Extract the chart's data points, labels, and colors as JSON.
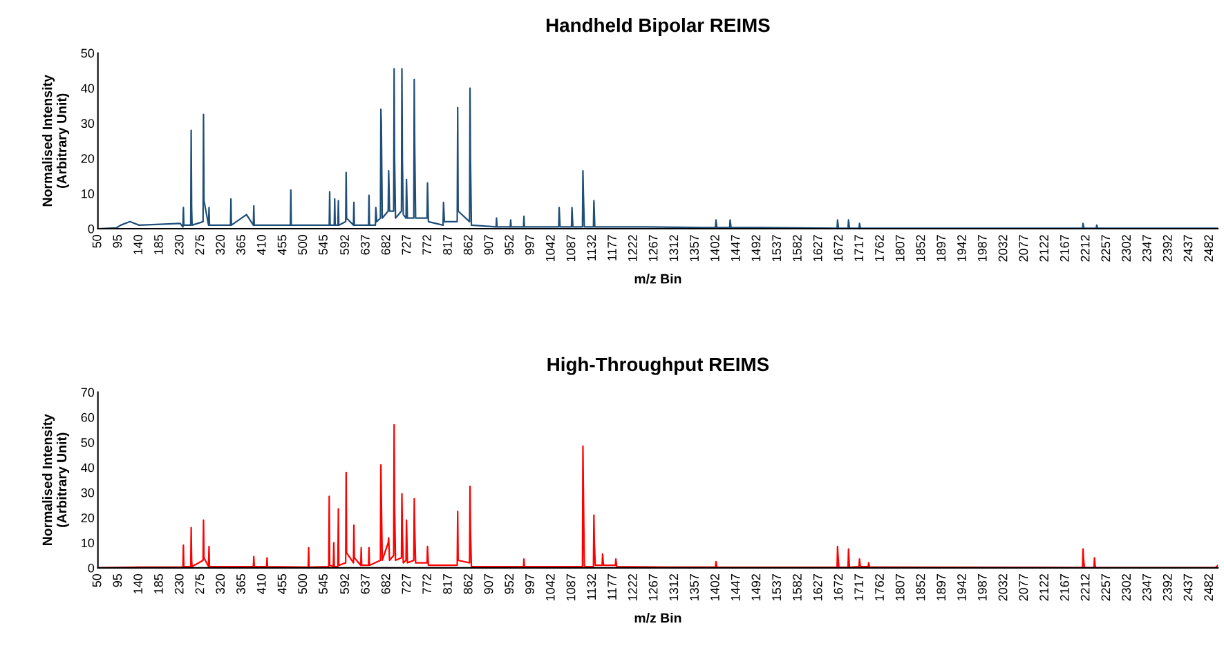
{
  "chart_data": [
    {
      "type": "line",
      "title": "Handheld Bipolar REIMS",
      "xlabel": "m/z Bin",
      "ylabel": "Normalised Intensity\n(Arbitrary Unit)",
      "xlim": [
        50,
        2500
      ],
      "ylim": [
        0,
        50
      ],
      "yticks": [
        0,
        10,
        20,
        30,
        40,
        50
      ],
      "xticks": [
        50,
        95,
        140,
        185,
        230,
        275,
        320,
        365,
        410,
        455,
        500,
        545,
        592,
        637,
        682,
        727,
        772,
        817,
        862,
        907,
        952,
        997,
        1042,
        1087,
        1132,
        1177,
        1222,
        1267,
        1312,
        1357,
        1402,
        1447,
        1492,
        1537,
        1582,
        1627,
        1672,
        1717,
        1762,
        1807,
        1852,
        1897,
        1942,
        1987,
        2032,
        2077,
        2122,
        2167,
        2212,
        2257,
        2302,
        2347,
        2392,
        2437,
        2482
      ],
      "grid": false,
      "marker": "none",
      "line_style": "solid",
      "series": [
        {
          "color": "#1f4e79",
          "x": [
            50,
            90,
            100,
            120,
            140,
            230,
            236,
            237,
            238,
            253,
            254,
            255,
            256,
            280,
            281,
            282,
            292,
            293,
            294,
            340,
            341,
            342,
            375,
            390,
            391,
            392,
            471,
            472,
            473,
            556,
            557,
            558,
            567,
            568,
            569,
            575,
            576,
            577,
            592,
            593,
            594,
            609,
            610,
            611,
            642,
            643,
            644,
            657,
            658,
            660,
            668,
            669,
            670,
            672,
            685,
            686,
            688,
            697,
            698,
            699,
            701,
            714,
            715,
            716,
            718,
            724,
            725,
            727,
            741,
            742,
            743,
            745,
            770,
            771,
            773,
            805,
            806,
            808,
            836,
            837,
            838,
            863,
            864,
            865,
            867,
            921,
            922,
            923,
            952,
            953,
            954,
            981,
            982,
            983,
            1058,
            1059,
            1061,
            1086,
            1087,
            1089,
            1110,
            1111,
            1112,
            1114,
            1134,
            1135,
            1137,
            1250,
            1401,
            1402,
            1404,
            1432,
            1433,
            1435,
            1500,
            1667,
            1668,
            1670,
            1691,
            1692,
            1694,
            1715,
            1716,
            1718,
            2204,
            2205,
            2207,
            2234,
            2235,
            2237,
            2500
          ],
          "values": [
            0,
            0.2,
            1,
            2,
            1,
            1.5,
            0.5,
            6,
            1,
            1,
            28,
            6,
            1,
            2,
            32.5,
            8,
            1,
            6,
            1,
            1,
            8.5,
            1,
            4,
            1,
            6.5,
            1,
            1,
            11,
            1,
            1,
            10.5,
            1,
            1,
            8.5,
            1,
            1,
            8,
            1,
            2,
            16,
            3,
            1,
            7.5,
            1,
            1,
            9.5,
            1,
            1,
            6,
            2,
            3,
            34,
            30,
            3,
            5,
            16.5,
            5,
            5,
            45.5,
            20,
            3,
            5,
            45.5,
            20,
            4,
            3,
            14,
            3,
            3,
            42.5,
            24,
            3,
            3,
            13,
            2,
            1,
            7.5,
            2,
            2,
            34.5,
            5,
            2,
            40,
            20,
            1,
            0.5,
            3,
            0.5,
            0.5,
            2.5,
            0.5,
            0.5,
            3.5,
            0.5,
            0.5,
            6,
            0.5,
            0.5,
            6,
            0.5,
            0.5,
            16.5,
            10,
            0.5,
            0.5,
            8,
            0.5,
            0.5,
            0.3,
            2.5,
            0.3,
            0.3,
            2.5,
            0.3,
            0.3,
            0.1,
            2.5,
            0.1,
            0.1,
            2.5,
            0.1,
            0.1,
            1.5,
            0.1,
            0.1,
            1.5,
            0.1,
            0.1,
            1,
            0.1,
            0.1
          ]
        }
      ]
    },
    {
      "type": "line",
      "title": "High-Throughput REIMS",
      "xlabel": "m/z Bin",
      "ylabel": "Normalised Intensity\n(Arbitrary Unit)",
      "xlim": [
        50,
        2500
      ],
      "ylim": [
        0,
        70
      ],
      "yticks": [
        0,
        10,
        20,
        30,
        40,
        50,
        60,
        70
      ],
      "xticks": [
        50,
        95,
        140,
        185,
        230,
        275,
        320,
        365,
        410,
        455,
        500,
        545,
        592,
        637,
        682,
        727,
        772,
        817,
        862,
        907,
        952,
        997,
        1042,
        1087,
        1132,
        1177,
        1222,
        1267,
        1312,
        1357,
        1402,
        1447,
        1492,
        1537,
        1582,
        1627,
        1672,
        1717,
        1762,
        1807,
        1852,
        1897,
        1942,
        1987,
        2032,
        2077,
        2122,
        2167,
        2212,
        2257,
        2302,
        2347,
        2392,
        2437,
        2482
      ],
      "grid": false,
      "marker": "none",
      "line_style": "solid",
      "series": [
        {
          "color": "#ff0000",
          "x": [
            50,
            140,
            236,
            237,
            238,
            253,
            254,
            255,
            256,
            280,
            281,
            282,
            292,
            293,
            294,
            390,
            391,
            392,
            419,
            420,
            421,
            510,
            511,
            512,
            555,
            556,
            557,
            565,
            566,
            567,
            575,
            576,
            577,
            592,
            593,
            594,
            609,
            610,
            611,
            625,
            626,
            627,
            642,
            643,
            644,
            668,
            669,
            670,
            672,
            685,
            686,
            688,
            697,
            698,
            699,
            701,
            714,
            715,
            716,
            718,
            724,
            725,
            727,
            741,
            742,
            743,
            745,
            770,
            771,
            773,
            836,
            837,
            838,
            863,
            864,
            865,
            867,
            981,
            982,
            983,
            1110,
            1111,
            1112,
            1114,
            1134,
            1135,
            1136,
            1138,
            1153,
            1154,
            1156,
            1182,
            1183,
            1185,
            1300,
            1401,
            1402,
            1404,
            1500,
            1667,
            1668,
            1669,
            1671,
            1691,
            1692,
            1694,
            1715,
            1716,
            1718,
            1735,
            1736,
            1738,
            2204,
            2205,
            2206,
            2208,
            2229,
            2230,
            2232,
            2495,
            2500
          ],
          "values": [
            0,
            0.3,
            0.3,
            9,
            0.5,
            0.5,
            16,
            3,
            0.5,
            3,
            19,
            4,
            0.5,
            8.5,
            0.5,
            0.5,
            4.5,
            0.5,
            0.5,
            4,
            0.5,
            0.3,
            8,
            0.3,
            0.5,
            28.5,
            1,
            0.5,
            10,
            0.5,
            0.5,
            23.5,
            1,
            2,
            38,
            6,
            2,
            17,
            4,
            1,
            8,
            1,
            1,
            8,
            1,
            3,
            41,
            28,
            3,
            10,
            12,
            3,
            5,
            57,
            25,
            3,
            4,
            29.5,
            15,
            2,
            3,
            19,
            2,
            3,
            27.5,
            16,
            2,
            2,
            8.5,
            1,
            1,
            22.5,
            3,
            2,
            32.5,
            15,
            0.5,
            0.5,
            3.5,
            0.5,
            0.5,
            48.5,
            31,
            0.5,
            0.5,
            21,
            10,
            1,
            1,
            5.5,
            1,
            1,
            3.5,
            0.5,
            0.3,
            0.3,
            2.5,
            0.3,
            0.2,
            0.2,
            8.5,
            5,
            0.2,
            0.2,
            7.5,
            0.2,
            0.5,
            3.5,
            0.5,
            0.5,
            2,
            0.3,
            0.1,
            7.5,
            4,
            0.1,
            0.1,
            4,
            0.1,
            0.1,
            1
          ]
        }
      ]
    }
  ]
}
